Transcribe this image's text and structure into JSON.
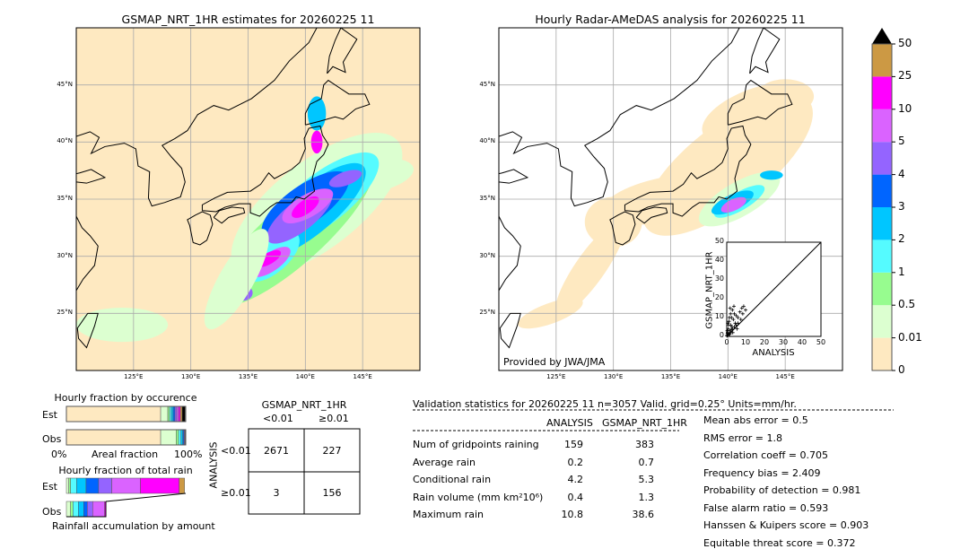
{
  "chart_data": [
    {
      "type": "map",
      "title": "GSMAP_NRT_1HR estimates for 20260225 11",
      "lon_range": [
        120,
        150
      ],
      "lat_range": [
        20,
        50
      ],
      "lon_ticks": [
        "125°E",
        "130°E",
        "135°E",
        "140°E",
        "145°E"
      ],
      "lat_ticks": [
        "25°N",
        "30°N",
        "35°N",
        "40°N",
        "45°N"
      ],
      "grid": true
    },
    {
      "type": "map",
      "title": "Hourly Radar-AMeDAS analysis for 20260225 11",
      "lon_range": [
        120,
        150
      ],
      "lat_range": [
        20,
        50
      ],
      "lon_ticks": [
        "125°E",
        "130°E",
        "135°E",
        "140°E",
        "145°E"
      ],
      "lat_ticks": [
        "25°N",
        "30°N",
        "35°N",
        "40°N",
        "45°N"
      ],
      "grid": true,
      "annotation": "Provided by JWA/JMA"
    },
    {
      "type": "colorbar",
      "levels": [
        "0",
        "0.01",
        "0.5",
        "1",
        "2",
        "3",
        "4",
        "5",
        "10",
        "25",
        "50"
      ],
      "colors": [
        "#fee9c1",
        "#dcffd0",
        "#97fc8f",
        "#55fbff",
        "#00c6ff",
        "#0065ff",
        "#9464ff",
        "#da63ff",
        "#ff00ff",
        "#cc9944"
      ],
      "extend": "max"
    },
    {
      "type": "scatter",
      "xlabel": "ANALYSIS",
      "ylabel": "GSMAP_NRT_1HR",
      "xlim": [
        0,
        50
      ],
      "ylim": [
        0,
        50
      ],
      "ticks": [
        "0",
        "10",
        "20",
        "30",
        "40",
        "50"
      ],
      "points": [
        [
          0.2,
          0.5
        ],
        [
          0.5,
          2
        ],
        [
          0.8,
          4
        ],
        [
          1,
          6
        ],
        [
          1.2,
          8
        ],
        [
          1.5,
          3
        ],
        [
          2,
          12
        ],
        [
          2.5,
          10
        ],
        [
          3,
          14
        ],
        [
          3.5,
          9
        ],
        [
          4,
          12
        ],
        [
          4.5,
          7
        ],
        [
          5,
          11
        ],
        [
          6,
          10
        ],
        [
          7,
          13
        ],
        [
          8,
          15
        ],
        [
          9,
          16
        ],
        [
          10,
          14
        ],
        [
          1,
          1
        ],
        [
          2,
          2
        ],
        [
          3,
          4
        ],
        [
          4,
          5
        ],
        [
          5,
          6
        ],
        [
          6,
          7
        ],
        [
          0.3,
          3
        ],
        [
          0.6,
          7
        ],
        [
          1.8,
          15
        ],
        [
          2.2,
          6
        ],
        [
          0.4,
          1.5
        ],
        [
          1.4,
          10
        ],
        [
          2.8,
          5
        ],
        [
          3.2,
          2
        ],
        [
          0.1,
          0.3
        ],
        [
          0.9,
          0.8
        ],
        [
          1.6,
          1.2
        ],
        [
          2.4,
          3.5
        ],
        [
          7.5,
          9
        ],
        [
          8.5,
          12
        ],
        [
          5.5,
          4
        ],
        [
          3.8,
          16
        ]
      ]
    },
    {
      "type": "bar",
      "title": "Hourly fraction by occurence",
      "xlabel": "Areal fraction",
      "x_ticks": [
        "0%",
        "100%"
      ],
      "categories": [
        "Est",
        "Obs"
      ],
      "series": [
        {
          "values_percent": [
            79,
            6,
            1.5,
            1.5,
            1.5,
            1.5,
            1.5,
            1.5,
            1.5,
            1.5,
            2.5
          ]
        },
        {
          "values_percent": [
            79,
            13,
            2,
            2,
            1.5,
            1,
            0.5,
            0.5,
            0.5,
            0,
            0
          ]
        }
      ]
    },
    {
      "type": "bar",
      "title": "Hourly fraction of total rain",
      "xlabel": "Rainfall accumulation by amount",
      "categories": [
        "Est",
        "Obs"
      ],
      "series": [
        {
          "values_percent": [
            2,
            1.5,
            5,
            8,
            10.5,
            11,
            24,
            32.5,
            4.5
          ]
        },
        {
          "values_percent": [
            3.5,
            2,
            4.5,
            4.5,
            3,
            4.5,
            10,
            1,
            0
          ]
        }
      ]
    },
    {
      "type": "table",
      "title": "GSMAP_NRT_1HR",
      "col_labels": [
        "<0.01",
        "≥0.01"
      ],
      "row_title": "ANALYSIS",
      "row_labels": [
        "<0.01",
        "≥0.01"
      ],
      "cells": [
        [
          "2671",
          "227"
        ],
        [
          "3",
          "156"
        ]
      ]
    }
  ],
  "stats": {
    "header": "Validation statistics for 20260225 11  n=3057 Valid. grid=0.25° Units=mm/hr.",
    "col_analysis": "ANALYSIS",
    "col_gsmap": "GSMAP_NRT_1HR",
    "rows": [
      {
        "label": "Num of gridpoints raining",
        "a": "159",
        "g": "383"
      },
      {
        "label": "Average rain",
        "a": "0.2",
        "g": "0.7"
      },
      {
        "label": "Conditional rain",
        "a": "4.2",
        "g": "5.3"
      },
      {
        "label": "Rain volume (mm km²10⁶)",
        "a": "0.4",
        "g": "1.3"
      },
      {
        "label": "Maximum rain",
        "a": "10.8",
        "g": "38.6"
      }
    ],
    "scores": [
      "Mean abs error =    0.5",
      "RMS error =    1.8",
      "Correlation coeff =  0.705",
      "Frequency bias =  2.409",
      "Probability of detection =  0.981",
      "False alarm ratio =  0.593",
      "Hanssen & Kuipers score =  0.903",
      "Equitable threat score =  0.372"
    ]
  }
}
